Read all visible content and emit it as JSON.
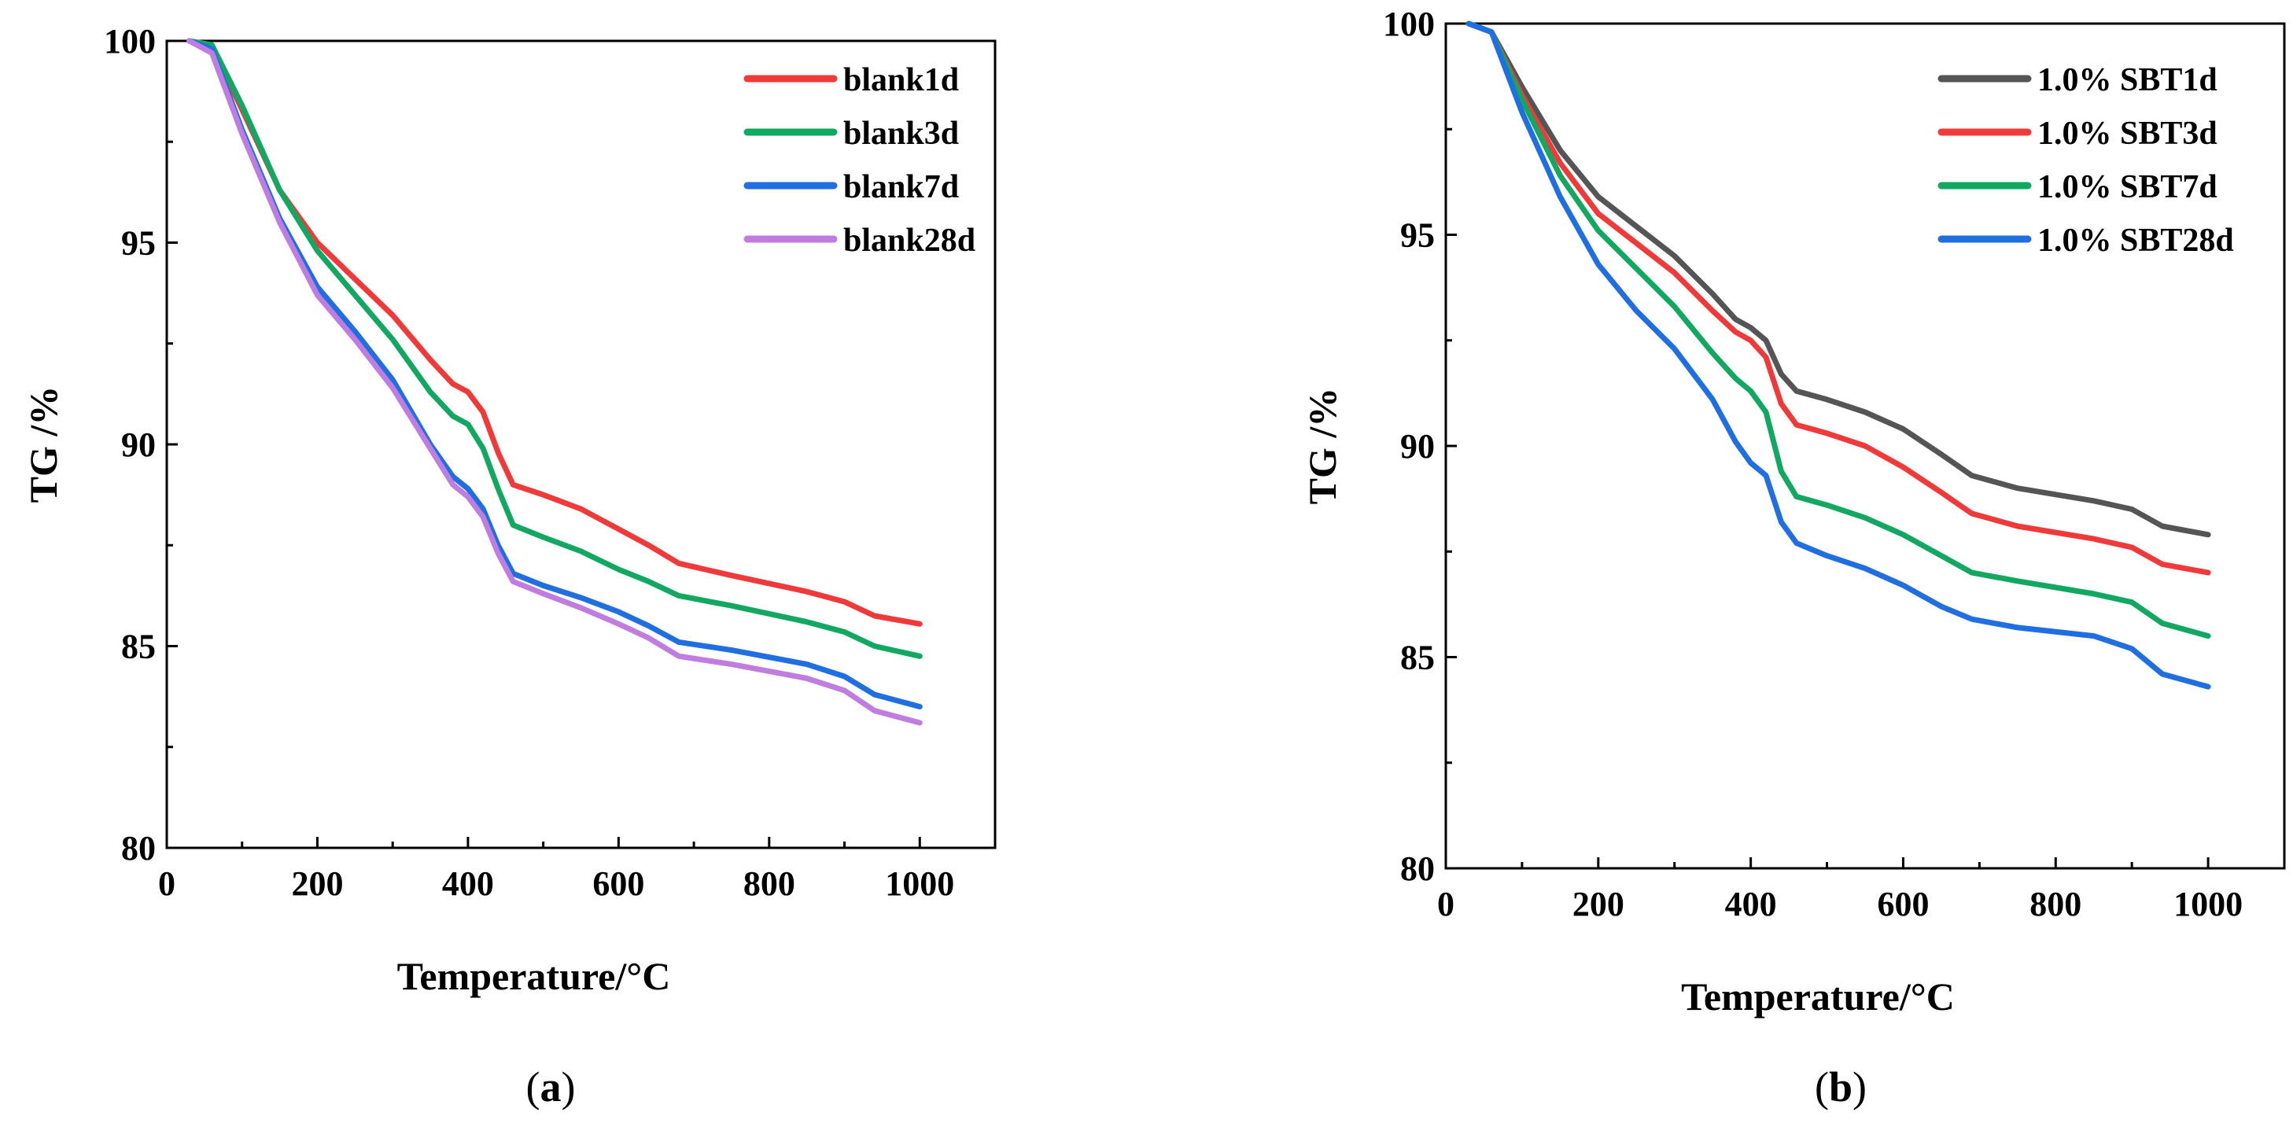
{
  "chart_data": [
    {
      "panel": "a",
      "panel_label": "(a)",
      "panel_letter": "a",
      "type": "line",
      "xlabel": "Temperature/°C",
      "ylabel": "TG /%",
      "xlim": [
        0,
        1100
      ],
      "ylim": [
        80,
        100
      ],
      "xticks": [
        0,
        200,
        400,
        600,
        800,
        1000
      ],
      "yticks": [
        80,
        85,
        90,
        95,
        100
      ],
      "grid": false,
      "legend_position": "top-right",
      "x": [
        30,
        60,
        100,
        150,
        200,
        250,
        300,
        350,
        380,
        400,
        420,
        440,
        460,
        500,
        550,
        600,
        640,
        680,
        750,
        850,
        900,
        940,
        1000
      ],
      "series": [
        {
          "name": "blank1d",
          "color": "#f03a3a",
          "values": [
            100.0,
            99.85,
            98.3,
            96.3,
            95.0,
            94.1,
            93.2,
            92.1,
            91.5,
            91.3,
            90.8,
            89.8,
            89.0,
            88.75,
            88.4,
            87.9,
            87.5,
            87.05,
            86.75,
            86.35,
            86.1,
            85.75,
            85.55
          ]
        },
        {
          "name": "blank3d",
          "color": "#12a862",
          "values": [
            100.0,
            99.9,
            98.4,
            96.3,
            94.8,
            93.7,
            92.6,
            91.3,
            90.7,
            90.5,
            89.9,
            88.9,
            88.0,
            87.7,
            87.35,
            86.9,
            86.6,
            86.25,
            86.0,
            85.6,
            85.35,
            85.0,
            84.75
          ]
        },
        {
          "name": "blank7d",
          "color": "#1f6fe0",
          "values": [
            100.0,
            99.8,
            97.8,
            95.6,
            93.9,
            92.8,
            91.6,
            90.0,
            89.2,
            88.9,
            88.4,
            87.5,
            86.8,
            86.5,
            86.2,
            85.85,
            85.5,
            85.1,
            84.9,
            84.55,
            84.25,
            83.8,
            83.5
          ]
        },
        {
          "name": "blank28d",
          "color": "#c07de0",
          "values": [
            100.0,
            99.7,
            97.7,
            95.5,
            93.7,
            92.6,
            91.4,
            89.9,
            89.0,
            88.7,
            88.2,
            87.3,
            86.6,
            86.3,
            85.95,
            85.55,
            85.2,
            84.75,
            84.55,
            84.2,
            83.9,
            83.4,
            83.1
          ]
        }
      ]
    },
    {
      "panel": "b",
      "panel_label": "(b)",
      "panel_letter": "b",
      "type": "line",
      "xlabel": "Temperature/°C",
      "ylabel": "TG /%",
      "xlim": [
        0,
        1100
      ],
      "ylim": [
        80,
        100
      ],
      "xticks": [
        0,
        200,
        400,
        600,
        800,
        1000
      ],
      "yticks": [
        80,
        85,
        90,
        95,
        100
      ],
      "grid": false,
      "legend_position": "top-right",
      "x": [
        30,
        60,
        100,
        150,
        200,
        250,
        300,
        350,
        380,
        400,
        420,
        440,
        460,
        500,
        550,
        600,
        650,
        690,
        750,
        850,
        900,
        940,
        1000
      ],
      "series": [
        {
          "name": "1.0% SBT1d",
          "color": "#555555",
          "values": [
            100.0,
            99.8,
            98.5,
            97.0,
            95.9,
            95.2,
            94.5,
            93.6,
            93.0,
            92.8,
            92.5,
            91.7,
            91.3,
            91.1,
            90.8,
            90.4,
            89.8,
            89.3,
            89.0,
            88.7,
            88.5,
            88.1,
            87.9
          ]
        },
        {
          "name": "1.0% SBT3d",
          "color": "#f03a3a",
          "values": [
            100.0,
            99.8,
            98.3,
            96.7,
            95.5,
            94.8,
            94.1,
            93.2,
            92.7,
            92.5,
            92.1,
            91.0,
            90.5,
            90.3,
            90.0,
            89.5,
            88.9,
            88.4,
            88.1,
            87.8,
            87.6,
            87.2,
            87.0
          ]
        },
        {
          "name": "1.0% SBT7d",
          "color": "#12a862",
          "values": [
            100.0,
            99.8,
            98.2,
            96.4,
            95.1,
            94.2,
            93.3,
            92.2,
            91.6,
            91.3,
            90.8,
            89.4,
            88.8,
            88.6,
            88.3,
            87.9,
            87.4,
            87.0,
            86.8,
            86.5,
            86.3,
            85.8,
            85.5
          ]
        },
        {
          "name": "1.0% SBT28d",
          "color": "#1f6fe0",
          "values": [
            100.0,
            99.8,
            97.9,
            95.9,
            94.3,
            93.2,
            92.3,
            91.1,
            90.1,
            89.6,
            89.3,
            88.2,
            87.7,
            87.4,
            87.1,
            86.7,
            86.2,
            85.9,
            85.7,
            85.5,
            85.2,
            84.6,
            84.3
          ]
        }
      ]
    }
  ]
}
